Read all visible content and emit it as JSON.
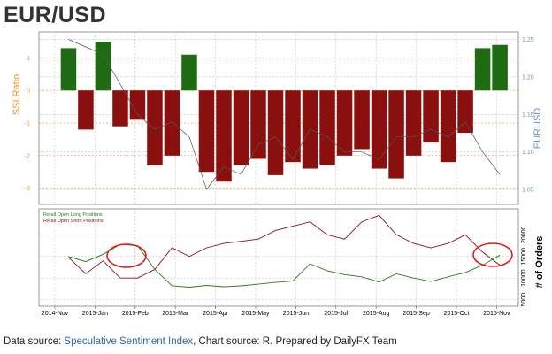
{
  "title": "EUR/USD",
  "footer": {
    "prefix": "Data source: ",
    "link_text": "Speculative Sentiment Index",
    "suffix": ", Chart source: R. Prepared by DailyFX Team"
  },
  "colors": {
    "long_bar": "#1e6b14",
    "short_bar": "#8a1010",
    "price": "#555555",
    "left_axis": "#f0902a",
    "right_axis": "#6f95b8",
    "long_line": "#2a7a1a",
    "short_line": "#8a1010",
    "highlight": "#e01b1b"
  },
  "chart_data": [
    {
      "type": "bar",
      "ylabel": "SSI Ratio",
      "ylabel_right": "EURUSD",
      "ylim": [
        -3.5,
        1.8
      ],
      "yticks": [
        1,
        0,
        -1,
        -2,
        -3
      ],
      "ylim_right": [
        1.03,
        1.26
      ],
      "yticks_right": [
        "1.25",
        "1.20",
        "1.15",
        "1.10",
        "1.05"
      ],
      "grid": true,
      "xlim": [
        "2014-11-01",
        "2015-11-25"
      ],
      "series": [
        {
          "x": [
            "2014-11-25",
            "2014-12-09",
            "2014-12-23",
            "2015-01-06",
            "2015-01-20",
            "2015-02-03",
            "2015-02-17",
            "2015-03-03",
            "2015-03-17",
            "2015-03-31",
            "2015-04-14",
            "2015-04-28",
            "2015-05-12",
            "2015-05-26",
            "2015-06-09",
            "2015-06-23",
            "2015-07-07",
            "2015-07-21",
            "2015-08-04",
            "2015-08-18",
            "2015-09-01",
            "2015-09-15",
            "2015-09-29",
            "2015-10-13",
            "2015-10-27",
            "2015-11-10"
          ],
          "values": [
            1.3,
            -1.2,
            1.5,
            -1.1,
            -0.9,
            -2.3,
            -2.0,
            1.1,
            -2.5,
            -2.8,
            -2.3,
            -2.1,
            -2.6,
            -2.2,
            -2.4,
            -2.3,
            -2.0,
            -1.8,
            -2.4,
            -2.7,
            -2.0,
            -1.6,
            -2.2,
            -1.3,
            1.3,
            1.4
          ]
        },
        {
          "name": "EURUSD",
          "x": [
            "2014-11-25",
            "2014-12-09",
            "2014-12-23",
            "2015-01-06",
            "2015-01-20",
            "2015-02-03",
            "2015-02-17",
            "2015-03-03",
            "2015-03-17",
            "2015-03-31",
            "2015-04-14",
            "2015-04-28",
            "2015-05-12",
            "2015-05-26",
            "2015-06-09",
            "2015-06-23",
            "2015-07-07",
            "2015-07-21",
            "2015-08-04",
            "2015-08-18",
            "2015-09-01",
            "2015-09-15",
            "2015-09-29",
            "2015-10-13",
            "2015-10-27",
            "2015-11-10"
          ],
          "values": [
            1.25,
            1.24,
            1.23,
            1.19,
            1.15,
            1.13,
            1.14,
            1.12,
            1.05,
            1.08,
            1.07,
            1.11,
            1.12,
            1.09,
            1.13,
            1.12,
            1.1,
            1.1,
            1.09,
            1.12,
            1.12,
            1.13,
            1.12,
            1.14,
            1.1,
            1.07
          ]
        }
      ]
    },
    {
      "type": "line",
      "ylabel": "# of Orders",
      "ylim": [
        3500,
        26000
      ],
      "yticks": [
        "20000",
        "15000",
        "10000",
        "5000"
      ],
      "grid": true,
      "legend_position": "top-left",
      "x_tick_labels": [
        "2014-Nov",
        "2015-Jan",
        "2015-Feb",
        "2015-Mar",
        "2015-Apr",
        "2015-May",
        "2015-Jun",
        "2015-Jul",
        "2015-Aug",
        "2015-Sep",
        "2015-Oct",
        "2015-Nov"
      ],
      "xlim": [
        "2014-11-01",
        "2015-11-25"
      ],
      "series": [
        {
          "name": "Retail Open Long Positions",
          "x": [
            "2014-11-25",
            "2014-12-09",
            "2014-12-23",
            "2015-01-06",
            "2015-01-20",
            "2015-02-03",
            "2015-02-17",
            "2015-03-03",
            "2015-03-17",
            "2015-03-31",
            "2015-04-14",
            "2015-04-28",
            "2015-05-12",
            "2015-05-26",
            "2015-06-09",
            "2015-06-23",
            "2015-07-07",
            "2015-07-21",
            "2015-08-04",
            "2015-08-18",
            "2015-09-01",
            "2015-09-15",
            "2015-09-29",
            "2015-10-13",
            "2015-10-27",
            "2015-11-10"
          ],
          "values": [
            15000,
            13800,
            15500,
            17800,
            17500,
            12000,
            8200,
            7900,
            8300,
            8000,
            8200,
            8600,
            9000,
            9300,
            13300,
            11700,
            10800,
            10300,
            9100,
            11000,
            10000,
            9200,
            10300,
            11300,
            13000,
            15300
          ]
        },
        {
          "name": "Retail Open Short Positions",
          "x": [
            "2014-11-25",
            "2014-12-09",
            "2014-12-23",
            "2015-01-06",
            "2015-01-20",
            "2015-02-03",
            "2015-02-17",
            "2015-03-03",
            "2015-03-17",
            "2015-03-31",
            "2015-04-14",
            "2015-04-28",
            "2015-05-12",
            "2015-05-26",
            "2015-06-09",
            "2015-06-23",
            "2015-07-07",
            "2015-07-21",
            "2015-08-04",
            "2015-08-18",
            "2015-09-01",
            "2015-09-15",
            "2015-09-29",
            "2015-10-13",
            "2015-10-27",
            "2015-11-10"
          ],
          "values": [
            14800,
            11000,
            14000,
            10000,
            10000,
            12000,
            17000,
            15000,
            17000,
            18000,
            18500,
            19000,
            21000,
            22000,
            23000,
            20000,
            19000,
            23000,
            24500,
            20000,
            18000,
            17000,
            18000,
            20000,
            16000,
            13000
          ]
        }
      ]
    }
  ]
}
